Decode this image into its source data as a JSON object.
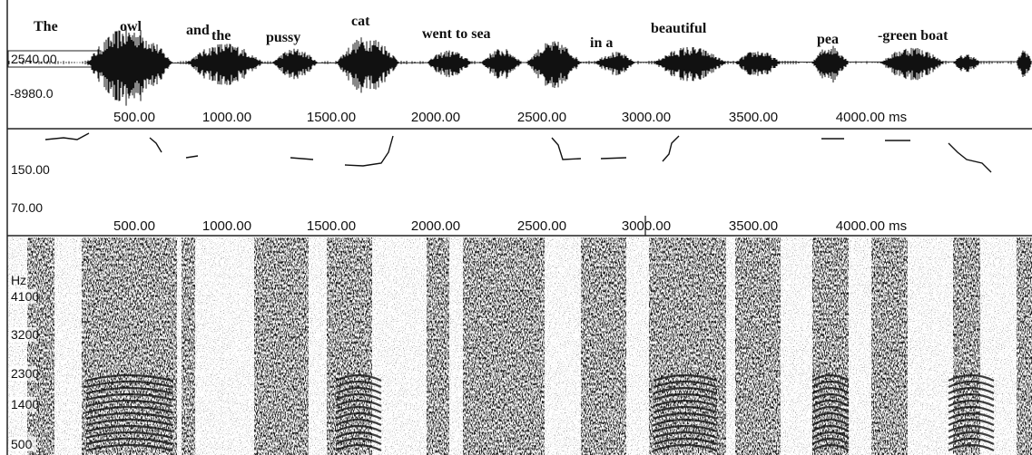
{
  "waveform": {
    "words": [
      "The",
      "owl",
      "and",
      "the",
      "pussy",
      "cat",
      "went to sea",
      "in a",
      "beautiful",
      "pea",
      "-green boat"
    ],
    "y_labels": [
      "2540.00",
      "-8980.0"
    ],
    "x_ticks": [
      "500.00",
      "1000.00",
      "1500.00",
      "2000.00",
      "2500.00",
      "3000.00",
      "3500.00",
      "4000.00 ms"
    ]
  },
  "pitch": {
    "y_labels": [
      "150.00",
      "70.00"
    ],
    "x_ticks": [
      "500.00",
      "1000.00",
      "1500.00",
      "2000.00",
      "2500.00",
      "3000.00",
      "3500.00",
      "4000.00 ms"
    ]
  },
  "spectrogram": {
    "unit": "Hz",
    "y_labels": [
      "4100",
      "3200",
      "2300",
      "1400",
      "500"
    ]
  }
}
